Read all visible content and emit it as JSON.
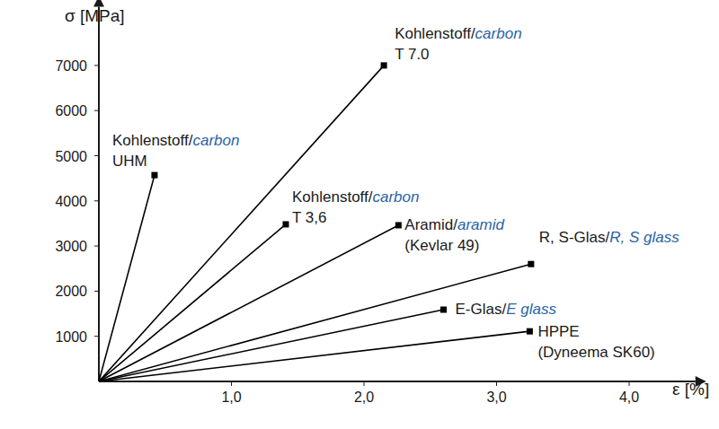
{
  "chart_data": {
    "type": "line",
    "x_label": "ε [%]",
    "y_label": "σ [MPa]",
    "xlim": [
      0,
      4.5
    ],
    "ylim": [
      0,
      8300
    ],
    "xticks": [
      {
        "value": 1,
        "label": "1,0"
      },
      {
        "value": 2,
        "label": "2,0"
      },
      {
        "value": 3,
        "label": "3,0"
      },
      {
        "value": 4,
        "label": "4,0"
      }
    ],
    "yticks": [
      1000,
      2000,
      3000,
      4000,
      5000,
      6000,
      7000
    ],
    "color": "#000000",
    "marker": "square",
    "series": [
      {
        "name": "Kohlenstoff/",
        "name_en": "carbon",
        "subtitle": "UHM",
        "x": [
          0,
          0.42
        ],
        "values": [
          0,
          4570
        ]
      },
      {
        "name": "Kohlenstoff/",
        "name_en": "carbon",
        "subtitle": "T 7.0",
        "x": [
          0,
          2.15
        ],
        "values": [
          0,
          7000
        ]
      },
      {
        "name": "Kohlenstoff/",
        "name_en": "carbon",
        "subtitle": "T 3,6",
        "x": [
          0,
          1.41
        ],
        "values": [
          0,
          3480
        ]
      },
      {
        "name": "Aramid/",
        "name_en": "aramid",
        "subtitle": "(Kevlar 49)",
        "x": [
          0,
          2.26
        ],
        "values": [
          0,
          3460
        ]
      },
      {
        "name": "R, S-Glas/",
        "name_en": "R, S glass",
        "x": [
          0,
          3.26
        ],
        "values": [
          0,
          2600
        ]
      },
      {
        "name": "E-Glas/",
        "name_en": "E glass",
        "x": [
          0,
          2.6
        ],
        "values": [
          0,
          1590
        ]
      },
      {
        "name": "HPPE",
        "subtitle": "(Dyneema SK60)",
        "x": [
          0,
          3.25
        ],
        "values": [
          0,
          1110
        ]
      }
    ]
  }
}
